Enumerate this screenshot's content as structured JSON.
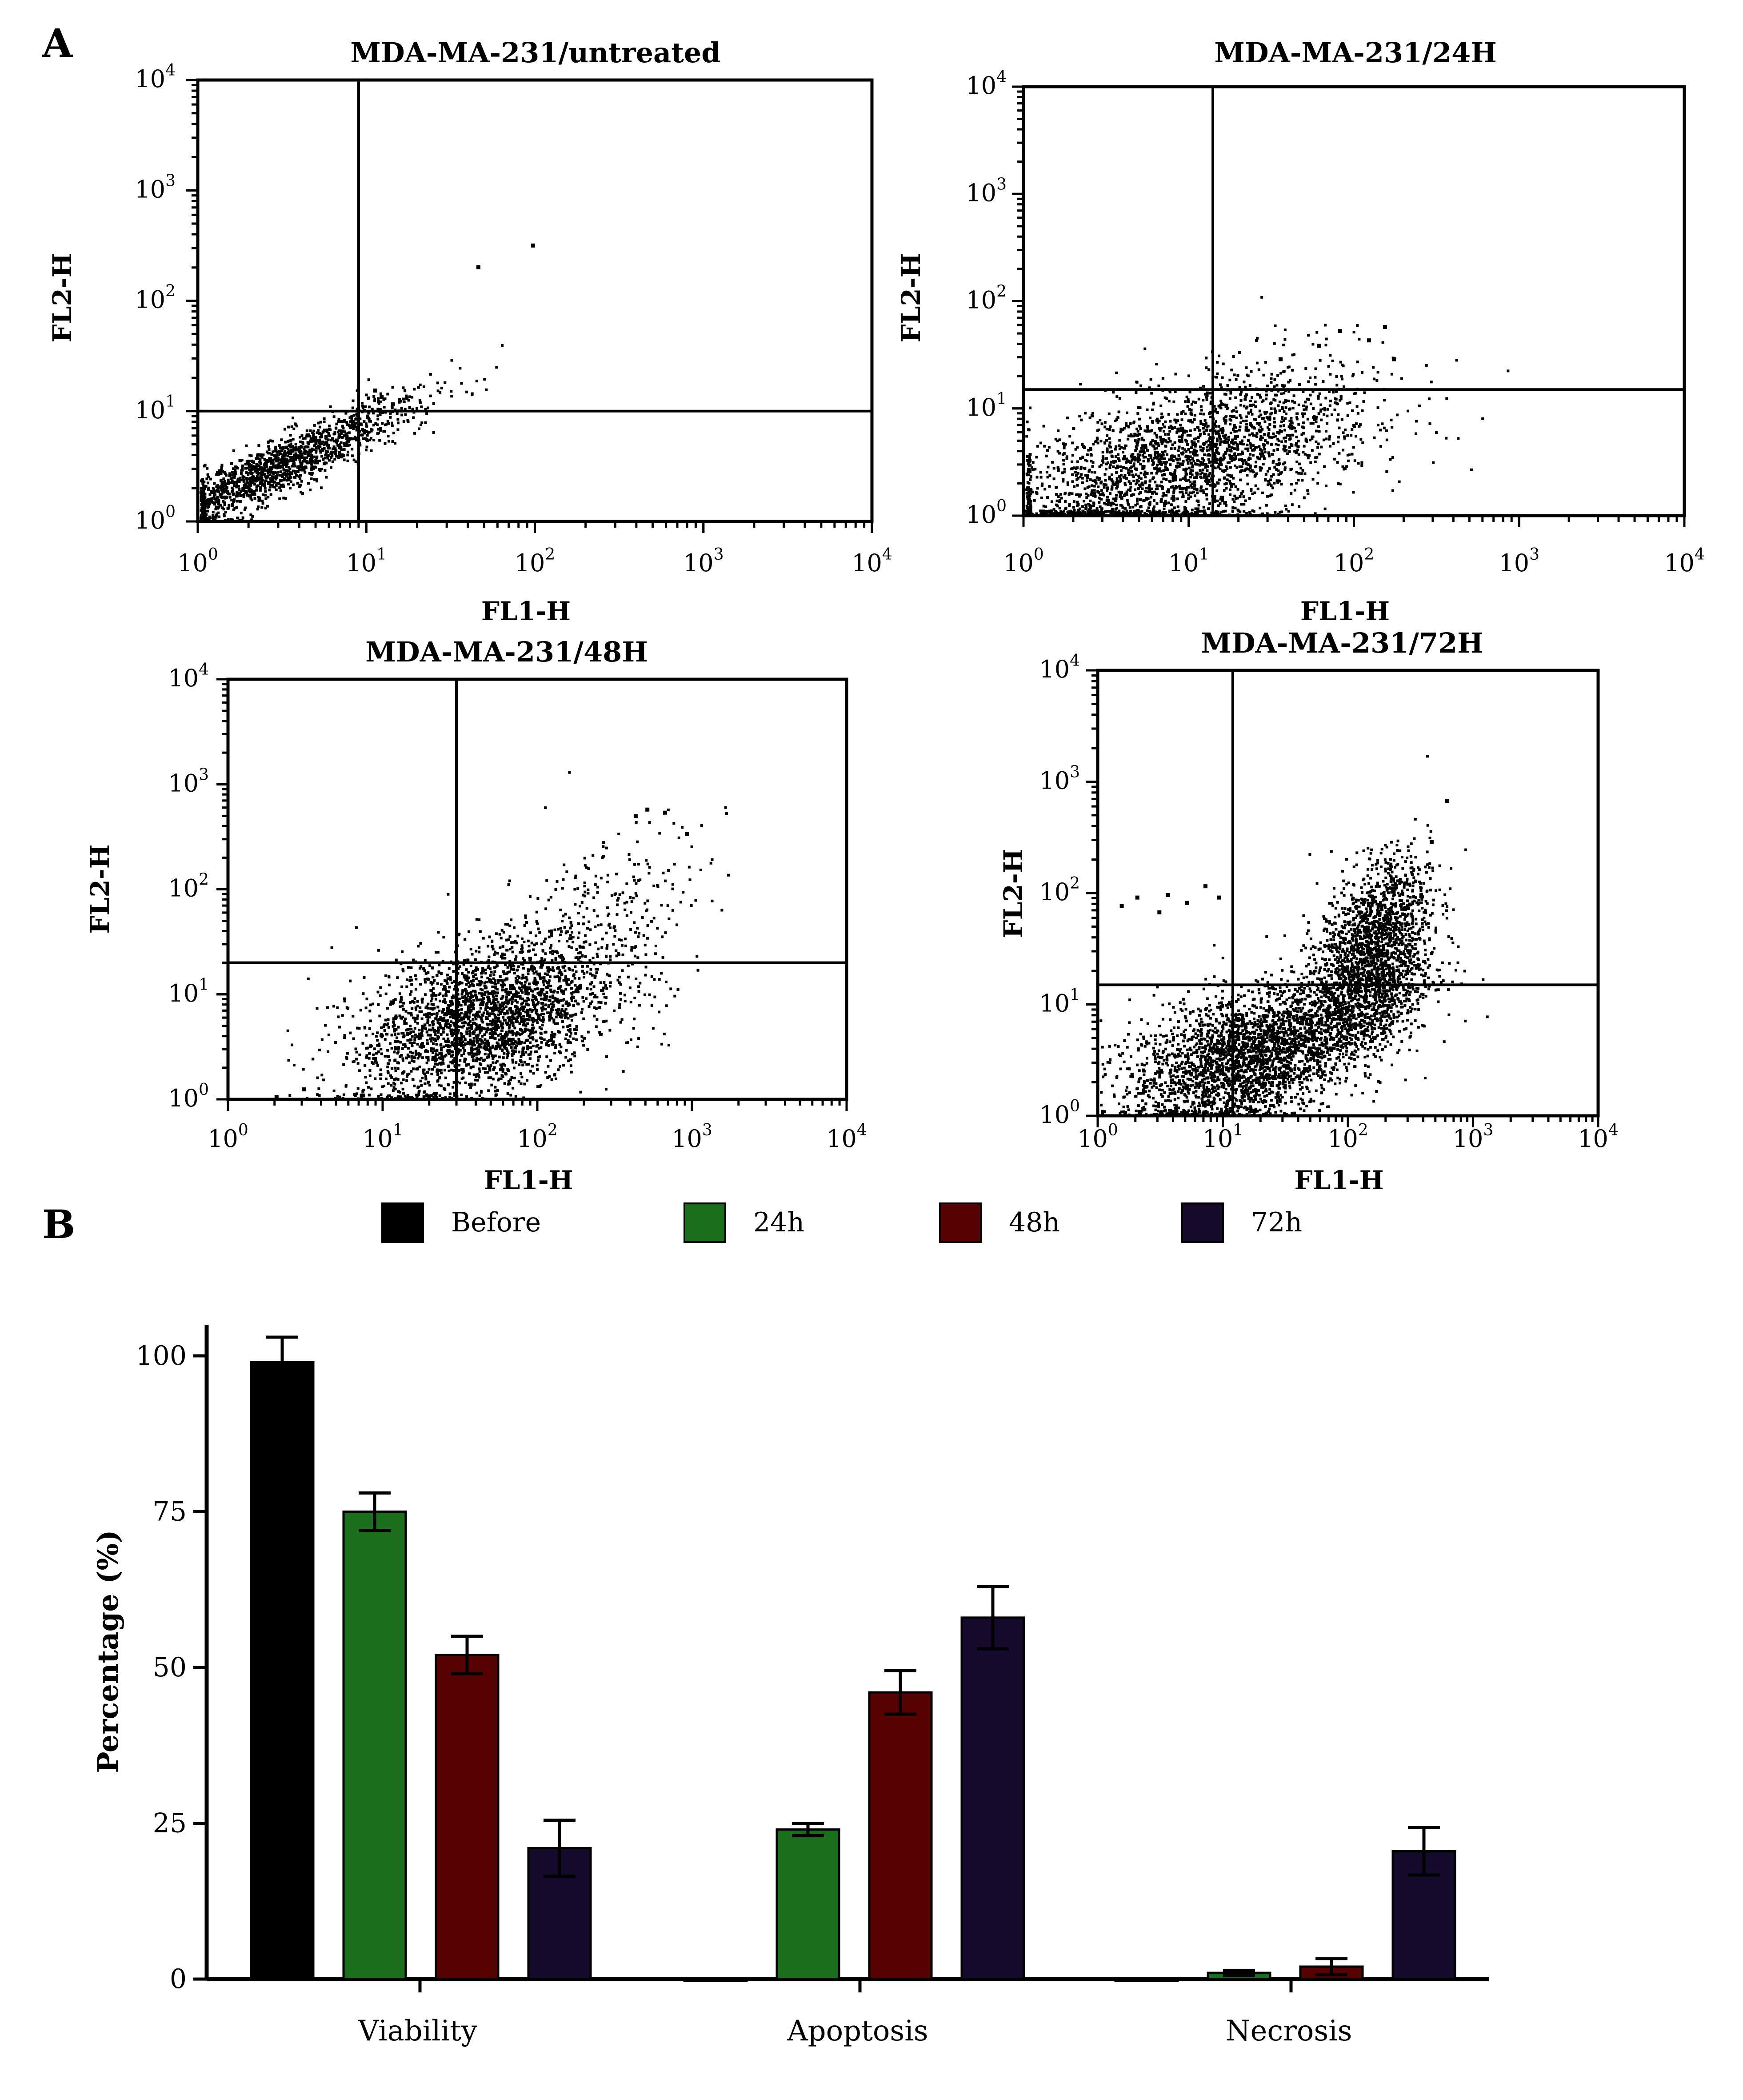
{
  "panel_labels": {
    "a": "A",
    "b": "B"
  },
  "colors": {
    "ink": "#000000",
    "before": "#000000",
    "h24": "#1b6e1b",
    "h48": "#560202",
    "h72": "#160a2c"
  },
  "chart_data": [
    {
      "type": "scatter",
      "title": "MDA-MA-231/untreated",
      "xlabel": "FL1-H",
      "ylabel": "FL2-H",
      "scale": "log10",
      "xlim": [
        1,
        10000
      ],
      "ylim": [
        1,
        10000
      ],
      "x_ticks": [
        "10",
        "10",
        "10",
        "10",
        "10"
      ],
      "x_tick_exps": [
        "0",
        "1",
        "2",
        "3",
        "4"
      ],
      "y_ticks": [
        "10",
        "10",
        "10",
        "10",
        "10"
      ],
      "y_tick_exps": [
        "0",
        "1",
        "2",
        "3",
        "4"
      ],
      "quadrant_gate": {
        "x": 9,
        "y": 10
      },
      "distribution": [
        {
          "cx": 2.8,
          "cy": 3.0,
          "sx": 0.42,
          "sy": 0.32,
          "n": 1600,
          "corr": 0.92
        }
      ],
      "outliers": [
        [
          45,
          210
        ],
        [
          95,
          330
        ],
        [
          12,
          14
        ],
        [
          14,
          12
        ],
        [
          11,
          16
        ]
      ]
    },
    {
      "type": "scatter",
      "title": "MDA-MA-231/24H",
      "xlabel": "FL1-H",
      "ylabel": "FL2-H",
      "scale": "log10",
      "xlim": [
        1,
        10000
      ],
      "ylim": [
        1,
        10000
      ],
      "x_ticks": [
        "10",
        "10",
        "10",
        "10",
        "10"
      ],
      "x_tick_exps": [
        "0",
        "1",
        "2",
        "3",
        "4"
      ],
      "y_ticks": [
        "10",
        "10",
        "10",
        "10",
        "10"
      ],
      "y_tick_exps": [
        "0",
        "1",
        "2",
        "3",
        "4"
      ],
      "quadrant_gate": {
        "x": 14,
        "y": 15
      },
      "distribution": [
        {
          "cx": 9,
          "cy": 3.2,
          "sx": 0.55,
          "sy": 0.42,
          "n": 2600,
          "corr": 0.55
        }
      ],
      "outliers": [
        [
          60,
          40
        ],
        [
          80,
          55
        ],
        [
          120,
          45
        ],
        [
          150,
          60
        ],
        [
          35,
          30
        ],
        [
          170,
          30
        ]
      ]
    },
    {
      "type": "scatter",
      "title": "MDA-MA-231/48H",
      "xlabel": "FL1-H",
      "ylabel": "FL2-H",
      "scale": "log10",
      "xlim": [
        1,
        10000
      ],
      "ylim": [
        1,
        10000
      ],
      "x_ticks": [
        "10",
        "10",
        "10",
        "10",
        "10"
      ],
      "x_tick_exps": [
        "0",
        "1",
        "2",
        "3",
        "4"
      ],
      "y_ticks": [
        "10",
        "10",
        "10",
        "10",
        "10"
      ],
      "y_tick_exps": [
        "0",
        "1",
        "2",
        "3",
        "4"
      ],
      "quadrant_gate": {
        "x": 30,
        "y": 20
      },
      "distribution": [
        {
          "cx": 45,
          "cy": 6,
          "sx": 0.42,
          "sy": 0.38,
          "n": 3200,
          "corr": 0.45
        },
        {
          "cx": 250,
          "cy": 60,
          "sx": 0.35,
          "sy": 0.45,
          "n": 220,
          "corr": 0.5
        }
      ],
      "outliers": [
        [
          500,
          600
        ],
        [
          650,
          560
        ],
        [
          420,
          520
        ],
        [
          900,
          350
        ],
        [
          3,
          1.3
        ],
        [
          2,
          1.1
        ]
      ]
    },
    {
      "type": "scatter",
      "title": "MDA-MA-231/72H",
      "xlabel": "FL1-H",
      "ylabel": "FL2-H",
      "scale": "log10",
      "xlim": [
        1,
        10000
      ],
      "ylim": [
        1,
        10000
      ],
      "x_ticks": [
        "10",
        "10",
        "10",
        "10",
        "10"
      ],
      "x_tick_exps": [
        "0",
        "1",
        "2",
        "3",
        "4"
      ],
      "y_ticks": [
        "10",
        "10",
        "10",
        "10",
        "10"
      ],
      "y_tick_exps": [
        "0",
        "1",
        "2",
        "3",
        "4"
      ],
      "quadrant_gate": {
        "x": 12,
        "y": 15
      },
      "distribution": [
        {
          "cx": 15,
          "cy": 3.5,
          "sx": 0.45,
          "sy": 0.32,
          "n": 2800,
          "corr": 0.45
        },
        {
          "cx": 160,
          "cy": 40,
          "sx": 0.22,
          "sy": 0.35,
          "n": 1400,
          "corr": 0.35
        },
        {
          "cx": 120,
          "cy": 10,
          "sx": 0.3,
          "sy": 0.3,
          "n": 900,
          "corr": 0.5
        }
      ],
      "outliers": [
        [
          1.5,
          80
        ],
        [
          2,
          95
        ],
        [
          3,
          70
        ],
        [
          5,
          85
        ],
        [
          7,
          120
        ],
        [
          600,
          700
        ],
        [
          450,
          300
        ],
        [
          3.5,
          100
        ],
        [
          9,
          95
        ]
      ]
    },
    {
      "type": "bar",
      "title": "",
      "categories": [
        "Viability",
        "Apoptosis",
        "Necrosis"
      ],
      "series": [
        {
          "name": "Before",
          "values": [
            99,
            0,
            0
          ],
          "errors": [
            4,
            0,
            0
          ]
        },
        {
          "name": "24h",
          "values": [
            75,
            24,
            1
          ],
          "errors": [
            3,
            1,
            0.4
          ]
        },
        {
          "name": "48h",
          "values": [
            52,
            46,
            2
          ],
          "errors": [
            3,
            3.5,
            1.3
          ]
        },
        {
          "name": "72h",
          "values": [
            21,
            58,
            20.5
          ],
          "errors": [
            4.5,
            5,
            3.8
          ]
        }
      ],
      "xlabel": "",
      "ylabel": "Percentage (%)",
      "ylim": [
        0,
        100
      ],
      "yticks": [
        0,
        25,
        50,
        75,
        100
      ],
      "ytick_labels": [
        "0",
        "25",
        "50",
        "75",
        "100"
      ],
      "legend": "top"
    }
  ]
}
